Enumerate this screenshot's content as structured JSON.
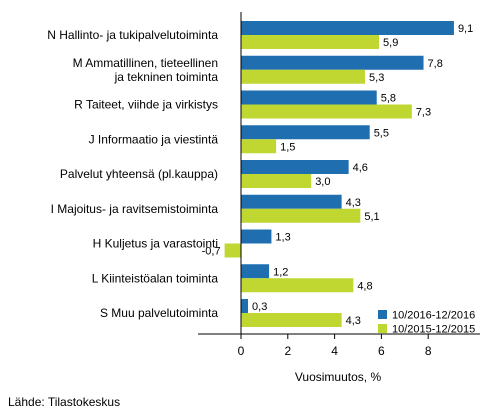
{
  "chart_data": {
    "type": "bar",
    "orientation": "horizontal",
    "categories": [
      [
        "N Hallinto- ja tukipalvelutoiminta"
      ],
      [
        "M Ammatillinen, tieteellinen",
        "ja tekninen toiminta"
      ],
      [
        "R Taiteet, viihde ja virkistys"
      ],
      [
        "J Informaatio ja viestintä"
      ],
      [
        "Palvelut yhteensä (pl.kauppa)"
      ],
      [
        "I Majoitus- ja ravitsemistoiminta"
      ],
      [
        "H Kuljetus ja varastointi"
      ],
      [
        "L Kiinteistöalan toiminta"
      ],
      [
        "S Muu palvelutoiminta"
      ]
    ],
    "series": [
      {
        "name": "10/2016-12/2016",
        "color": "#1f6fb0",
        "values": [
          9.1,
          7.8,
          5.8,
          5.5,
          4.6,
          4.3,
          1.3,
          1.2,
          0.3
        ],
        "labels": [
          "9,1",
          "7,8",
          "5,8",
          "5,5",
          "4,6",
          "4,3",
          "1,3",
          "1,2",
          "0,3"
        ]
      },
      {
        "name": "10/2015-12/2015",
        "color": "#bfd730",
        "values": [
          5.9,
          5.3,
          7.3,
          1.5,
          3.0,
          5.1,
          -0.7,
          4.8,
          4.3
        ],
        "labels": [
          "5,9",
          "5,3",
          "7,3",
          "1,5",
          "3,0",
          "5,1",
          "-0,7",
          "4,8",
          "4,3"
        ]
      }
    ],
    "xlabel": "Vuosimuutos, %",
    "xlim": [
      -1.2,
      10
    ],
    "xticks": [
      0,
      2,
      4,
      6,
      8
    ],
    "xtick_labels": [
      "0",
      "2",
      "4",
      "6",
      "8"
    ],
    "grid": false,
    "legend_position": "bottom-right"
  },
  "source": "Lähde: Tilastokeskus"
}
